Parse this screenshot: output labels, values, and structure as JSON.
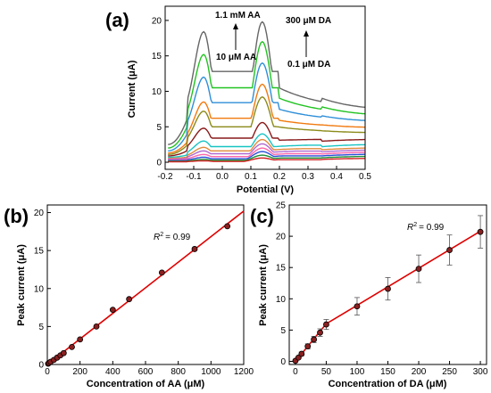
{
  "panels": {
    "a": {
      "label": "(a)",
      "chart_data": {
        "type": "line",
        "xlabel": "Potential (V)",
        "ylabel": "Current (μA)",
        "xlim": [
          -0.2,
          0.5
        ],
        "ylim": [
          -1,
          22
        ],
        "xticks": [
          "-0.2",
          "-0.1",
          "0.0",
          "0.1",
          "0.2",
          "0.3",
          "0.4",
          "0.5"
        ],
        "yticks": [
          "0",
          "5",
          "10",
          "15",
          "20"
        ],
        "annotations": {
          "aa_high": "1.1 mM AA",
          "aa_low": "10 μM AA",
          "da_high": "300 μM DA",
          "da_low": "0.1 μM DA"
        },
        "series": [
          {
            "color": "#666666",
            "peak1": 18.4,
            "valley": 12.8,
            "peak2": 19.8,
            "end": 7.2,
            "start": 2.5
          },
          {
            "color": "#22c322",
            "peak1": 15.2,
            "valley": 10.5,
            "peak2": 17.0,
            "end": 6.4,
            "start": 2.0
          },
          {
            "color": "#2f8fd8",
            "peak1": 12.0,
            "valley": 8.4,
            "peak2": 14.0,
            "end": 5.6,
            "start": 1.6
          },
          {
            "color": "#f07a10",
            "peak1": 8.5,
            "valley": 6.2,
            "peak2": 11.0,
            "end": 4.8,
            "start": 1.3
          },
          {
            "color": "#8b8b1a",
            "peak1": 7.2,
            "valley": 5.0,
            "peak2": 9.2,
            "end": 4.1,
            "start": 1.1
          },
          {
            "color": "#8a1a1a",
            "peak1": 4.8,
            "valley": 3.4,
            "peak2": 5.6,
            "end": 3.3,
            "start": 0.9
          },
          {
            "color": "#18c4c4",
            "peak1": 3.0,
            "valley": 2.2,
            "peak2": 4.0,
            "end": 2.6,
            "start": 0.7
          },
          {
            "color": "#e08a3a",
            "peak1": 2.1,
            "valley": 1.6,
            "peak2": 3.2,
            "end": 2.1,
            "start": 0.55
          },
          {
            "color": "#b06ad0",
            "peak1": 1.6,
            "valley": 1.2,
            "peak2": 2.6,
            "end": 1.8,
            "start": 0.45
          },
          {
            "color": "#ff66aa",
            "peak1": 1.1,
            "valley": 0.8,
            "peak2": 2.0,
            "end": 1.5,
            "start": 0.35
          },
          {
            "color": "#2a4ed8",
            "peak1": 0.7,
            "valley": 0.5,
            "peak2": 1.5,
            "end": 1.2,
            "start": 0.25
          },
          {
            "color": "#1f8f3a",
            "peak1": 0.4,
            "valley": 0.3,
            "peak2": 1.0,
            "end": 0.9,
            "start": 0.15
          },
          {
            "color": "#d02020",
            "peak1": 0.2,
            "valley": 0.1,
            "peak2": 0.6,
            "end": 0.6,
            "start": 0.05
          }
        ]
      }
    },
    "b": {
      "label": "(b)",
      "chart_data": {
        "type": "scatter",
        "xlabel": "Concentration of AA (μM)",
        "ylabel": "Peak current (μA)",
        "xlim": [
          0,
          1200
        ],
        "ylim": [
          0,
          21
        ],
        "xticks": [
          "0",
          "200",
          "400",
          "600",
          "800",
          "1000",
          "1200"
        ],
        "yticks": [
          "0",
          "5",
          "10",
          "15",
          "20"
        ],
        "r2": "= 0.99",
        "fit": {
          "x": [
            0,
            1200
          ],
          "y": [
            0,
            20.2
          ]
        },
        "points": {
          "x": [
            5,
            10,
            20,
            40,
            60,
            80,
            100,
            150,
            200,
            300,
            400,
            500,
            700,
            900,
            1100
          ],
          "y": [
            0.1,
            0.2,
            0.35,
            0.6,
            0.9,
            1.2,
            1.5,
            2.3,
            3.3,
            5.0,
            7.2,
            8.6,
            12.1,
            15.2,
            18.2
          ]
        }
      }
    },
    "c": {
      "label": "(c)",
      "chart_data": {
        "type": "scatter",
        "xlabel": "Concentration of DA (μM)",
        "ylabel": "Peak current (μA)",
        "xlim": [
          -10,
          310
        ],
        "ylim": [
          -0.5,
          25
        ],
        "xticks": [
          "0",
          "50",
          "100",
          "150",
          "200",
          "250",
          "300"
        ],
        "yticks": [
          "0",
          "5",
          "10",
          "15",
          "20",
          "25"
        ],
        "r2": "= 0.99",
        "fit": {
          "x": [
            0,
            50,
            300
          ],
          "y": [
            0,
            6.0,
            20.8
          ]
        },
        "points": {
          "x": [
            0.1,
            5,
            10,
            20,
            30,
            40,
            50,
            100,
            150,
            200,
            250,
            300
          ],
          "y": [
            0.1,
            0.6,
            1.2,
            2.4,
            3.5,
            4.6,
            5.9,
            8.8,
            11.6,
            14.8,
            17.8,
            20.7
          ],
          "err": [
            0.1,
            0.2,
            0.3,
            0.4,
            0.5,
            0.6,
            0.8,
            1.4,
            1.8,
            2.2,
            2.4,
            2.6
          ]
        }
      }
    }
  }
}
